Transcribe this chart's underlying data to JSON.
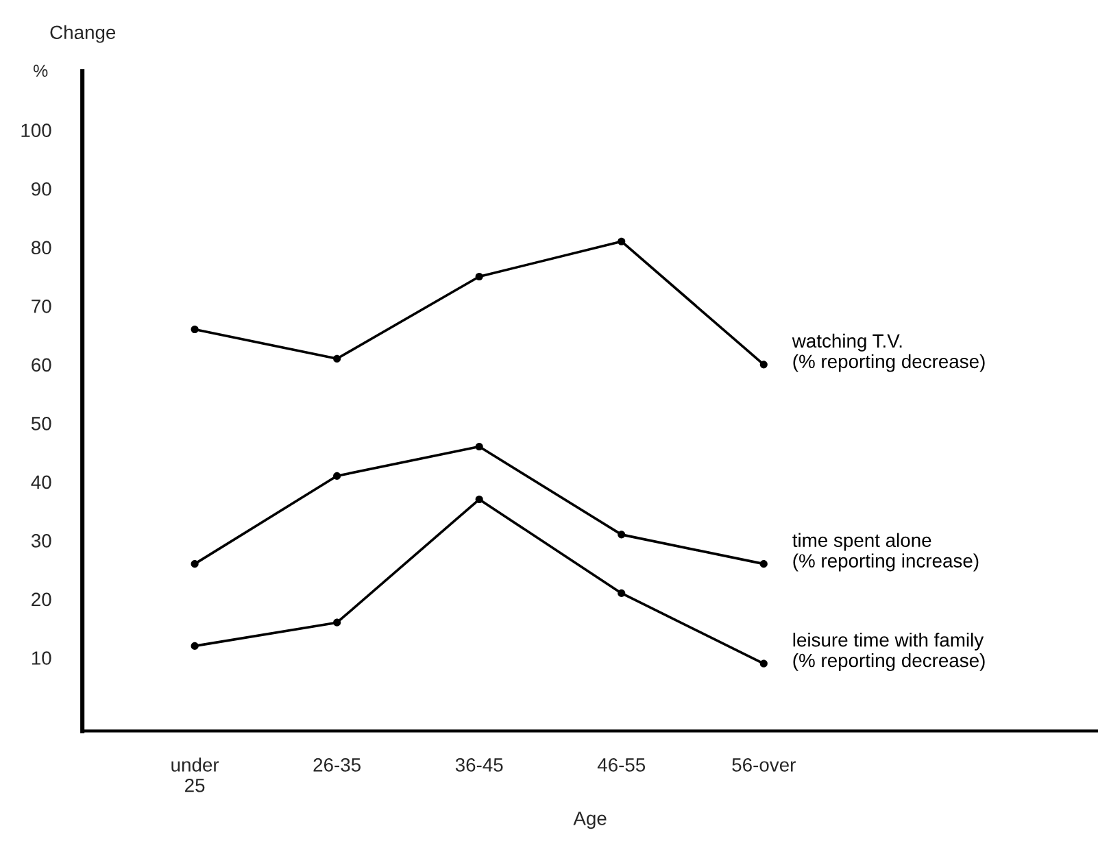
{
  "chart_data": {
    "type": "line",
    "xlabel": "Age",
    "ylabel": "Change",
    "annotations": [
      "%"
    ],
    "categories": [
      "under\n25",
      "26-35",
      "36-45",
      "46-55",
      "56-over"
    ],
    "series": [
      {
        "name": "watching T.V.\n(% reporting decrease)",
        "color": "#000000",
        "values": [
          66,
          61,
          75,
          81,
          60
        ]
      },
      {
        "name": "time spent alone\n(% reporting increase)",
        "color": "#000000",
        "values": [
          26,
          41,
          46,
          31,
          26
        ]
      },
      {
        "name": "leisure time with family\n(% reporting decrease)",
        "color": "#000000",
        "values": [
          12,
          16,
          37,
          21,
          9
        ]
      }
    ],
    "ylim": [
      -2.5,
      110
    ],
    "yticks": [
      10,
      20,
      30,
      40,
      50,
      60,
      70,
      80,
      90,
      100
    ],
    "marker": "circle",
    "line_style": "solid",
    "grid": false,
    "legend": false
  }
}
